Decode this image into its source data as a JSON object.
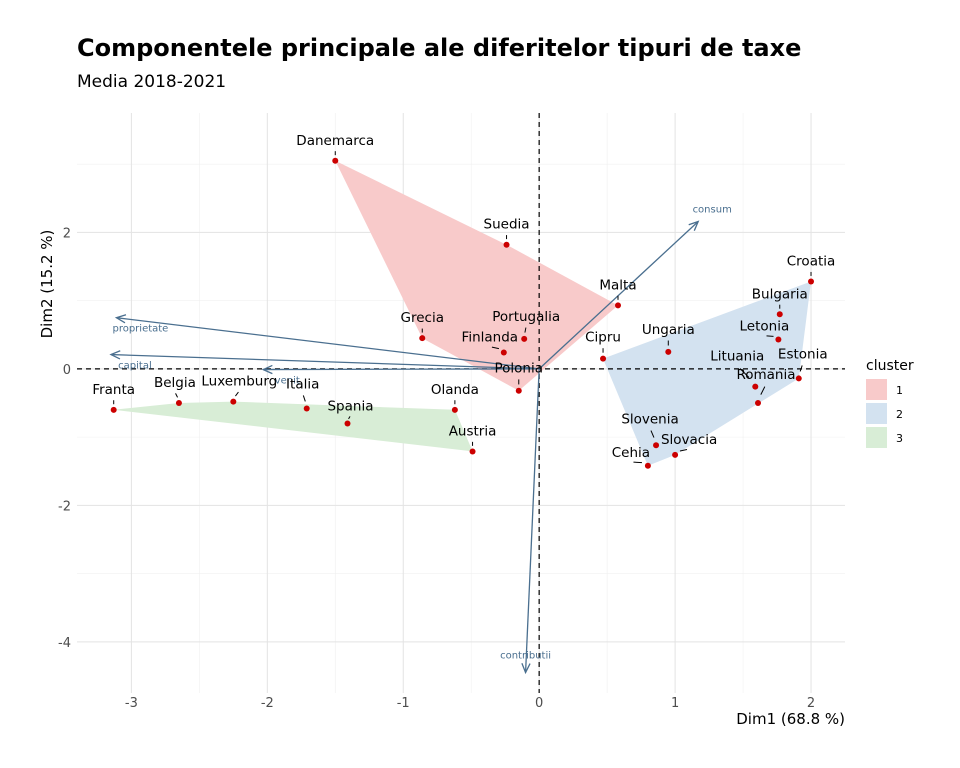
{
  "title": "Componentele principale ale diferitelor tipuri de taxe",
  "subtitle": "Media 2018-2021",
  "chart_data": {
    "type": "scatter",
    "xlabel": "Dim1 (68.8 %)",
    "ylabel": "Dim2 (15.2 %)",
    "xlim": [
      -3.4,
      2.25
    ],
    "ylim": [
      -4.75,
      3.75
    ],
    "xticks": [
      -3,
      -2,
      -1,
      0,
      1,
      2
    ],
    "yticks": [
      -4,
      -2,
      0,
      2
    ],
    "grid": true,
    "reference_lines": {
      "x": 0,
      "y": 0,
      "style": "dashed"
    },
    "legend": {
      "title": "cluster",
      "position": "right",
      "entries": [
        {
          "label": "1",
          "color": "#f8caca"
        },
        {
          "label": "2",
          "color": "#d3e2f0"
        },
        {
          "label": "3",
          "color": "#d8edd6"
        }
      ]
    },
    "point_color": "#cc0000",
    "arrow_color": "#4a6f8f",
    "points": [
      {
        "name": "Danemarca",
        "x": -1.5,
        "y": 3.05,
        "cluster": "1"
      },
      {
        "name": "Suedia",
        "x": -0.24,
        "y": 1.82,
        "cluster": "1"
      },
      {
        "name": "Malta",
        "x": 0.58,
        "y": 0.93,
        "cluster": "1"
      },
      {
        "name": "Portugalia",
        "x": -0.11,
        "y": 0.44,
        "cluster": "1"
      },
      {
        "name": "Grecia",
        "x": -0.86,
        "y": 0.45,
        "cluster": "1"
      },
      {
        "name": "Finlanda",
        "x": -0.26,
        "y": 0.24,
        "cluster": "1"
      },
      {
        "name": "Polonia",
        "x": -0.15,
        "y": -0.32,
        "cluster": "1"
      },
      {
        "name": "Croatia",
        "x": 2.0,
        "y": 1.28,
        "cluster": "2"
      },
      {
        "name": "Bulgaria",
        "x": 1.77,
        "y": 0.8,
        "cluster": "2"
      },
      {
        "name": "Letonia",
        "x": 1.76,
        "y": 0.43,
        "cluster": "2"
      },
      {
        "name": "Ungaria",
        "x": 0.95,
        "y": 0.25,
        "cluster": "2"
      },
      {
        "name": "Cipru",
        "x": 0.47,
        "y": 0.15,
        "cluster": "2"
      },
      {
        "name": "Estonia",
        "x": 1.91,
        "y": -0.14,
        "cluster": "2"
      },
      {
        "name": "Lituania",
        "x": 1.59,
        "y": -0.26,
        "cluster": "2"
      },
      {
        "name": "Romania",
        "x": 1.61,
        "y": -0.5,
        "cluster": "2"
      },
      {
        "name": "Slovenia",
        "x": 0.86,
        "y": -1.12,
        "cluster": "2"
      },
      {
        "name": "Slovacia",
        "x": 1.0,
        "y": -1.26,
        "cluster": "2"
      },
      {
        "name": "Cehia",
        "x": 0.8,
        "y": -1.42,
        "cluster": "2"
      },
      {
        "name": "Franta",
        "x": -3.13,
        "y": -0.6,
        "cluster": "3"
      },
      {
        "name": "Belgia",
        "x": -2.65,
        "y": -0.5,
        "cluster": "3"
      },
      {
        "name": "Luxemburg",
        "x": -2.25,
        "y": -0.48,
        "cluster": "3"
      },
      {
        "name": "Italia",
        "x": -1.71,
        "y": -0.58,
        "cluster": "3"
      },
      {
        "name": "Spania",
        "x": -1.41,
        "y": -0.8,
        "cluster": "3"
      },
      {
        "name": "Olanda",
        "x": -0.62,
        "y": -0.6,
        "cluster": "3"
      },
      {
        "name": "Austria",
        "x": -0.49,
        "y": -1.21,
        "cluster": "3"
      }
    ],
    "vectors": [
      {
        "name": "consum",
        "x": 1.17,
        "y": 2.16
      },
      {
        "name": "proprietate",
        "x": -3.11,
        "y": 0.75
      },
      {
        "name": "capital",
        "x": -3.15,
        "y": 0.21
      },
      {
        "name": "venit",
        "x": -2.03,
        "y": -0.01
      },
      {
        "name": "contributii",
        "x": -0.1,
        "y": -4.45
      }
    ]
  }
}
